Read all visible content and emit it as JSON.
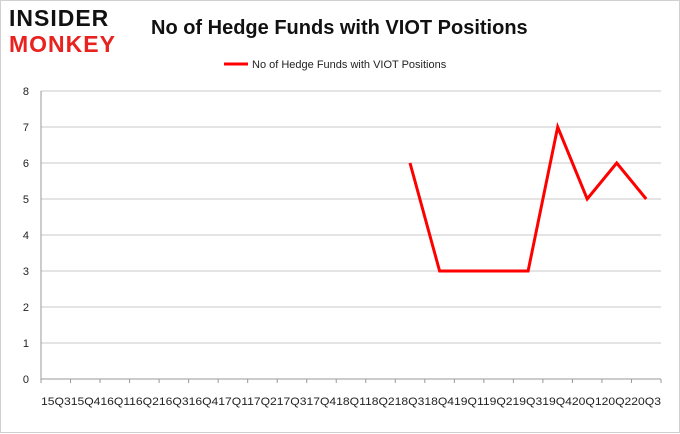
{
  "logo": {
    "line1": "INSIDER",
    "line2": "MONKEY"
  },
  "colors": {
    "series": "#ff0000",
    "grid": "#c8c8c8",
    "axis": "#999999",
    "logo_accent": "#e8231f"
  },
  "chart_data": {
    "type": "line",
    "title": "No of Hedge Funds with VIOT Positions",
    "xlabel": "",
    "ylabel": "",
    "ylim": [
      0,
      8
    ],
    "yticks": [
      0,
      1,
      2,
      3,
      4,
      5,
      6,
      7,
      8
    ],
    "grid": true,
    "legend_position": "top-center",
    "x_tick_text": "15Q315Q416Q116Q216Q316Q417Q117Q217Q317Q418Q118Q218Q318Q419Q119Q219Q319Q420Q120Q220Q3",
    "categories": [
      "15Q3",
      "15Q4",
      "16Q1",
      "16Q2",
      "16Q3",
      "16Q4",
      "17Q1",
      "17Q2",
      "17Q3",
      "17Q4",
      "18Q1",
      "18Q2",
      "18Q3",
      "18Q4",
      "19Q1",
      "19Q2",
      "19Q3",
      "19Q4",
      "20Q1",
      "20Q2",
      "20Q3"
    ],
    "series": [
      {
        "name": "No of Hedge Funds with VIOT Positions",
        "color": "#ff0000",
        "values": [
          null,
          null,
          null,
          null,
          null,
          null,
          null,
          null,
          null,
          null,
          null,
          null,
          6,
          3,
          3,
          3,
          3,
          7,
          5,
          6,
          5
        ]
      }
    ]
  }
}
